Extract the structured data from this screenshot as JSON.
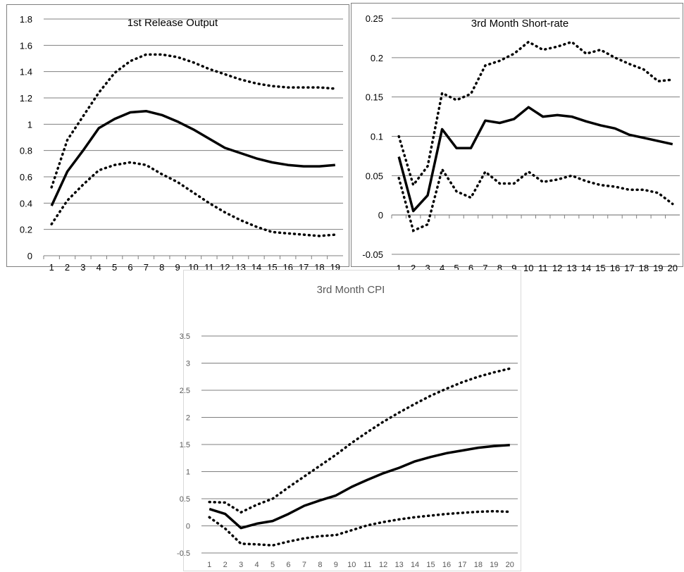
{
  "chart_data": [
    {
      "type": "line",
      "title": "1st Release Output",
      "xlabel": "",
      "ylabel": "",
      "categories": [
        "1",
        "2",
        "3",
        "4",
        "5",
        "6",
        "7",
        "8",
        "9",
        "10",
        "11",
        "12",
        "13",
        "14",
        "15",
        "16",
        "17",
        "18",
        "19"
      ],
      "ylim": [
        0,
        1.8
      ],
      "yticks": [
        "0",
        "0.2",
        "0.4",
        "0.6",
        "0.8",
        "1",
        "1.2",
        "1.4",
        "1.6",
        "1.8"
      ],
      "grid": true,
      "series": [
        {
          "style": "solid",
          "values": [
            0.38,
            0.64,
            0.8,
            0.97,
            1.04,
            1.09,
            1.1,
            1.07,
            1.02,
            0.96,
            0.89,
            0.82,
            0.78,
            0.74,
            0.71,
            0.69,
            0.68,
            0.68,
            0.69
          ]
        },
        {
          "style": "dotted",
          "values": [
            0.52,
            0.88,
            1.06,
            1.24,
            1.39,
            1.48,
            1.53,
            1.53,
            1.51,
            1.47,
            1.42,
            1.38,
            1.34,
            1.31,
            1.29,
            1.28,
            1.28,
            1.28,
            1.27
          ]
        },
        {
          "style": "dotted",
          "values": [
            0.24,
            0.42,
            0.54,
            0.65,
            0.69,
            0.71,
            0.69,
            0.62,
            0.56,
            0.48,
            0.4,
            0.33,
            0.27,
            0.22,
            0.18,
            0.17,
            0.16,
            0.15,
            0.16
          ]
        }
      ]
    },
    {
      "type": "line",
      "title": "3rd Month Short-rate",
      "xlabel": "",
      "ylabel": "",
      "categories": [
        "1",
        "2",
        "3",
        "4",
        "5",
        "6",
        "7",
        "8",
        "9",
        "10",
        "11",
        "12",
        "13",
        "14",
        "15",
        "16",
        "17",
        "18",
        "19",
        "20"
      ],
      "ylim": [
        -0.05,
        0.25
      ],
      "yticks": [
        "-0.05",
        "0",
        "0.05",
        "0.1",
        "0.15",
        "0.2",
        "0.25"
      ],
      "grid": true,
      "series": [
        {
          "style": "solid",
          "values": [
            0.074,
            0.005,
            0.025,
            0.109,
            0.085,
            0.085,
            0.12,
            0.117,
            0.122,
            0.137,
            0.125,
            0.127,
            0.125,
            0.119,
            0.114,
            0.11,
            0.102,
            0.098,
            0.094,
            0.09
          ]
        },
        {
          "style": "dotted",
          "values": [
            0.1,
            0.038,
            0.062,
            0.155,
            0.146,
            0.154,
            0.19,
            0.196,
            0.205,
            0.22,
            0.21,
            0.214,
            0.22,
            0.205,
            0.21,
            0.2,
            0.192,
            0.185,
            0.17,
            0.172
          ]
        },
        {
          "style": "dotted",
          "values": [
            0.047,
            -0.02,
            -0.012,
            0.058,
            0.03,
            0.022,
            0.055,
            0.04,
            0.04,
            0.055,
            0.042,
            0.045,
            0.05,
            0.043,
            0.038,
            0.036,
            0.032,
            0.032,
            0.028,
            0.014
          ]
        }
      ]
    },
    {
      "type": "line",
      "title": "3rd Month CPI",
      "xlabel": "",
      "ylabel": "",
      "categories": [
        "1",
        "2",
        "3",
        "4",
        "5",
        "6",
        "7",
        "8",
        "9",
        "10",
        "11",
        "12",
        "13",
        "14",
        "15",
        "16",
        "17",
        "18",
        "19",
        "20"
      ],
      "ylim": [
        -0.5,
        3.5
      ],
      "yticks": [
        "-0.5",
        "0",
        "0.5",
        "1",
        "1.5",
        "2",
        "2.5",
        "3",
        "3.5"
      ],
      "grid": true,
      "series": [
        {
          "style": "solid",
          "values": [
            0.31,
            0.22,
            -0.04,
            0.04,
            0.09,
            0.22,
            0.37,
            0.47,
            0.56,
            0.72,
            0.85,
            0.97,
            1.07,
            1.19,
            1.27,
            1.34,
            1.39,
            1.44,
            1.47,
            1.49
          ]
        },
        {
          "style": "dotted",
          "values": [
            0.44,
            0.43,
            0.25,
            0.39,
            0.5,
            0.71,
            0.91,
            1.11,
            1.31,
            1.53,
            1.73,
            1.92,
            2.09,
            2.25,
            2.4,
            2.53,
            2.65,
            2.75,
            2.83,
            2.9
          ]
        },
        {
          "style": "dotted",
          "values": [
            0.16,
            -0.05,
            -0.33,
            -0.34,
            -0.36,
            -0.29,
            -0.23,
            -0.19,
            -0.17,
            -0.08,
            0.01,
            0.07,
            0.12,
            0.16,
            0.19,
            0.22,
            0.24,
            0.26,
            0.27,
            0.26
          ]
        }
      ]
    }
  ]
}
